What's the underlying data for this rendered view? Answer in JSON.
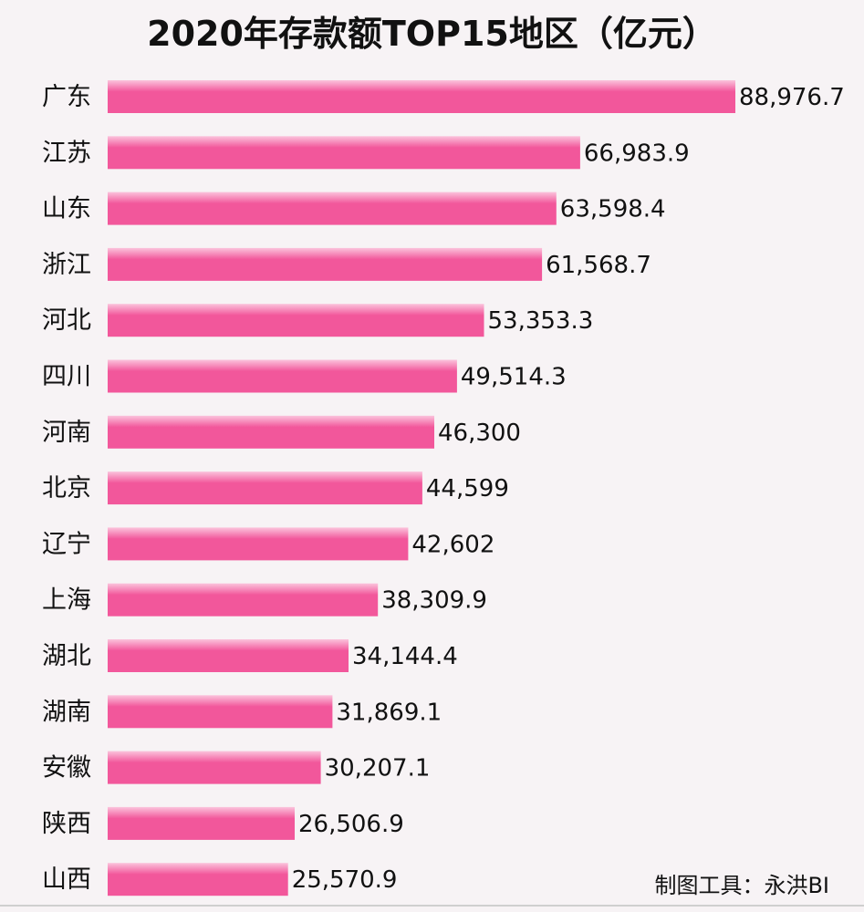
{
  "chart_data": {
    "type": "bar",
    "orientation": "horizontal",
    "title": "2020年存款额TOP15地区（亿元）",
    "categories": [
      "广东",
      "江苏",
      "山东",
      "浙江",
      "河北",
      "四川",
      "河南",
      "北京",
      "辽宁",
      "上海",
      "湖北",
      "湖南",
      "安徽",
      "陕西",
      "山西"
    ],
    "values": [
      88976.7,
      66983.9,
      63598.4,
      61568.7,
      53353.3,
      49514.3,
      46300,
      44599,
      42602,
      38309.9,
      34144.4,
      31869.1,
      30207.1,
      26506.9,
      25570.9
    ],
    "value_labels": [
      "88,976.7",
      "66,983.9",
      "63,598.4",
      "61,568.7",
      "53,353.3",
      "49,514.3",
      "46,300",
      "44,599",
      "42,602",
      "38,309.9",
      "34,144.4",
      "31,869.1",
      "30,207.1",
      "26,506.9",
      "25,570.9"
    ],
    "bar_color": "#f2579b",
    "bar_highlight_color": "#fbc3dc",
    "grid": false,
    "legend": "none"
  },
  "credit": "制图工具：永洪BI"
}
